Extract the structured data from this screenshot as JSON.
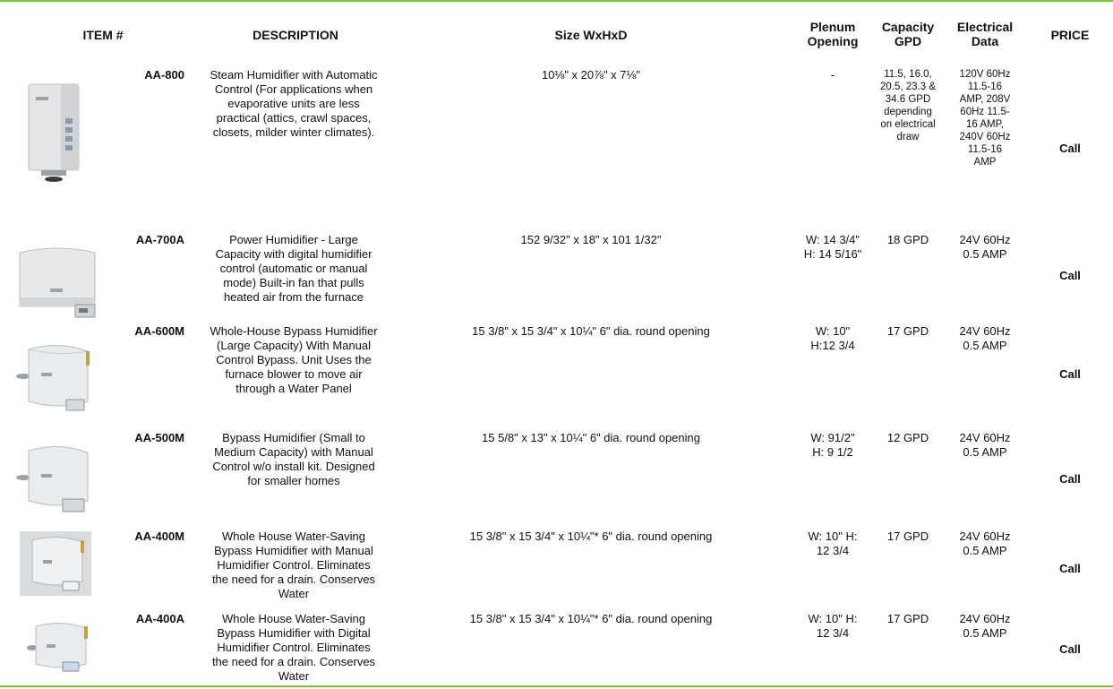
{
  "headers": {
    "item": "ITEM #",
    "description": "DESCRIPTION",
    "size": "Size WxHxD",
    "plenum": [
      "Plenum",
      "Opening"
    ],
    "capacity": [
      "Capacity",
      "GPD"
    ],
    "electrical": [
      "Electrical",
      "Data"
    ],
    "price": "PRICE"
  },
  "rows": [
    {
      "item": "AA-800",
      "description": [
        "Steam Humidifier with Automatic",
        "Control (For applications when",
        "evaporative units are less",
        "practical (attics, crawl spaces,",
        "closets, milder winter climates)."
      ],
      "size": "10⅛\" x 20⅞\" x 7⅛\"",
      "plenum": [
        "-"
      ],
      "capacity": [
        "11.5, 16.0,",
        "20.5, 23.3 &",
        "34.6 GPD",
        "depending",
        "on electrical",
        "draw"
      ],
      "electrical": [
        "120V 60Hz",
        "11.5-16",
        "AMP,  208V",
        "60Hz 11.5-",
        "16 AMP,",
        "240V 60Hz",
        "11.5-16",
        "AMP"
      ],
      "price": "Call",
      "image": "steam-humidifier-unit"
    },
    {
      "item": "AA-700A",
      "description": [
        "Power Humidifier  - Large",
        "Capacity with digital humidifier",
        "control (automatic or manual",
        "mode) Built-in fan that pulls",
        "heated air from the furnace"
      ],
      "size": "152 9/32\" x 18\" x 101 1/32\"",
      "plenum": [
        "W: 14 3/4\"",
        "H: 14 5/16\""
      ],
      "capacity": [
        "18 GPD"
      ],
      "electrical": [
        "24V 60Hz",
        "0.5 AMP"
      ],
      "price": "Call",
      "image": "power-humidifier-unit"
    },
    {
      "item": "AA-600M",
      "description": [
        "Whole-House Bypass Humidifier",
        "(Large Capacity) With Manual",
        "Control Bypass. Unit Uses the",
        "furnace blower to move air",
        "through a Water Panel"
      ],
      "size": "15 3/8\" x 15 3/4\" x 10¼\" 6\" dia. round opening",
      "plenum": [
        "W: 10\"",
        "H:12 3/4"
      ],
      "capacity": [
        "17 GPD"
      ],
      "electrical": [
        "24V 60Hz",
        "0.5 AMP"
      ],
      "price": "Call",
      "image": "bypass-humidifier-unit"
    },
    {
      "item": "AA-500M",
      "description": [
        "Bypass Humidifier (Small to",
        "Medium Capacity) with Manual",
        "Control w/o install kit. Designed",
        "for smaller homes"
      ],
      "size": "15 5/8\" x 13\" x 10¼\" 6\" dia. round opening",
      "plenum": [
        "W: 91/2\"",
        "H: 9 1/2"
      ],
      "capacity": [
        "12 GPD"
      ],
      "electrical": [
        "24V 60Hz",
        "0.5 AMP"
      ],
      "price": "Call",
      "image": "bypass-humidifier-unit"
    },
    {
      "item": "AA-400M",
      "description": [
        "Whole House Water-Saving",
        "Bypass Humidifier with Manual",
        "Humidifier Control. Eliminates",
        "the need for a drain. Conserves",
        "Water"
      ],
      "size": "15 3/8\" x 15 3/4\" x 10¼\"* 6\" dia. round opening",
      "plenum": [
        "W: 10\" H:",
        "12 3/4"
      ],
      "capacity": [
        "17 GPD"
      ],
      "electrical": [
        "24V 60Hz",
        "0.5 AMP"
      ],
      "price": "Call",
      "image": "water-saving-humidifier-unit"
    },
    {
      "item": "AA-400A",
      "description": [
        "Whole House Water-Saving",
        "Bypass Humidifier with Digital",
        "Humidifier Control. Eliminates",
        "the need for a drain. Conserves",
        "Water"
      ],
      "size": "15 3/8\" x 15 3/4\" x 10¼\"* 6\" dia. round opening",
      "plenum": [
        "W: 10\" H:",
        "12 3/4"
      ],
      "capacity": [
        "17 GPD"
      ],
      "electrical": [
        "24V 60Hz",
        "0.5 AMP"
      ],
      "price": "Call",
      "image": "bypass-humidifier-unit"
    }
  ]
}
